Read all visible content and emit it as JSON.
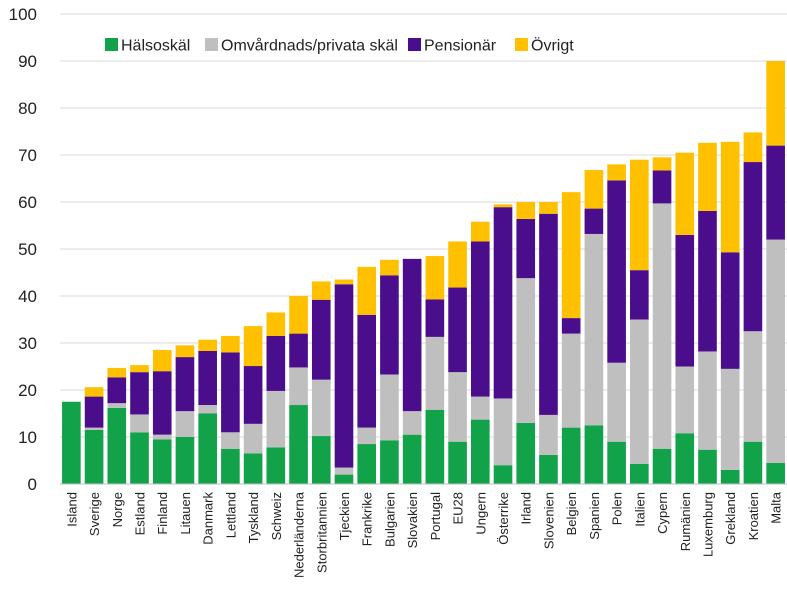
{
  "chart_data": {
    "type": "bar",
    "stacked": true,
    "ylim": [
      0,
      100
    ],
    "yticks": [
      0,
      10,
      20,
      30,
      40,
      50,
      60,
      70,
      80,
      90,
      100
    ],
    "grid": "horizontal",
    "legend_position": "top-left",
    "categories": [
      "Island",
      "Sverige",
      "Norge",
      "Estland",
      "Finland",
      "Litauen",
      "Danmark",
      "Lettland",
      "Tyskland",
      "Schweiz",
      "Nederländerna",
      "Storbritannien",
      "Tjeckien",
      "Frankrike",
      "Bulgarien",
      "Slovakien",
      "Portugal",
      "EU28",
      "Ungern",
      "Österrike",
      "Irland",
      "Slovenien",
      "Belgien",
      "Spanien",
      "Polen",
      "Italien",
      "Cypern",
      "Rumänien",
      "Luxemburg",
      "Grekland",
      "Kroatien",
      "Malta"
    ],
    "series": [
      {
        "name": "Hälsoskäl",
        "color": "#12a24a",
        "values": [
          17.5,
          11.5,
          16.2,
          11,
          9.5,
          10,
          15,
          7.5,
          6.5,
          7.8,
          16.8,
          10.2,
          2,
          8.5,
          9.3,
          10.5,
          15.8,
          9,
          13.7,
          4,
          13,
          6.2,
          12,
          12.5,
          9,
          4.3,
          7.5,
          10.8,
          7.3,
          3,
          9,
          4.5
        ]
      },
      {
        "name": "Omvårdnads/privata skäl",
        "color": "#bfbfbf",
        "values": [
          0,
          0.5,
          1,
          3.8,
          1,
          5.5,
          1.8,
          3.5,
          6.3,
          12,
          8,
          12,
          1.5,
          3.5,
          14,
          5,
          15.5,
          14.8,
          4.9,
          14.2,
          30.8,
          8.5,
          20,
          40.7,
          16.8,
          30.7,
          52.2,
          14.2,
          20.9,
          21.5,
          23.5,
          47.5
        ]
      },
      {
        "name": "Pensionär",
        "color": "#4a0e8c",
        "values": [
          0,
          6.6,
          5.5,
          9,
          13.5,
          11.5,
          11.5,
          17,
          12.3,
          11.7,
          7.2,
          17,
          39,
          24,
          21.1,
          32.4,
          8,
          18,
          33,
          40.7,
          12.6,
          42.8,
          3.3,
          5.4,
          38.8,
          10.5,
          7,
          28,
          29.9,
          24.8,
          36,
          20
        ]
      },
      {
        "name": "Övrigt",
        "color": "#ffc000",
        "values": [
          0,
          2,
          2,
          1.5,
          4.5,
          2.5,
          2.4,
          3.5,
          8.5,
          5,
          8,
          3.9,
          1,
          10.2,
          3.3,
          0,
          9.2,
          9.8,
          4.2,
          0.6,
          3.6,
          2.5,
          26.8,
          8.2,
          3.4,
          23.5,
          2.8,
          17.5,
          14.5,
          23.5,
          6.3,
          18
        ]
      }
    ]
  }
}
